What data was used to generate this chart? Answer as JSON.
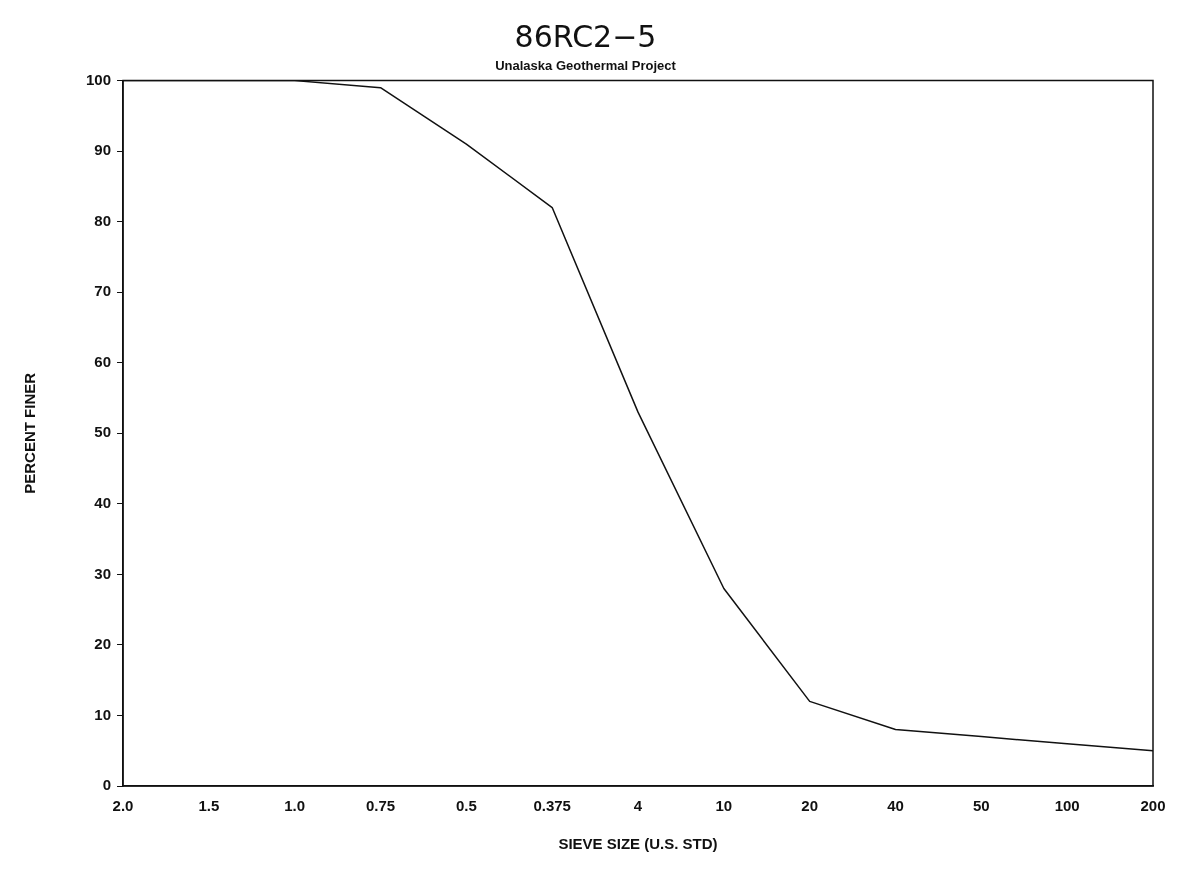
{
  "chart_data": {
    "type": "line",
    "title": "86RC2−5",
    "subtitle": "Unalaska Geothermal Project",
    "xlabel": "SIEVE SIZE (U.S. STD)",
    "ylabel": "PERCENT FINER",
    "categories": [
      "2.0",
      "1.5",
      "1.0",
      "0.75",
      "0.5",
      "0.375",
      "4",
      "10",
      "20",
      "40",
      "50",
      "100",
      "200"
    ],
    "series": [
      {
        "color": "#111111",
        "values": [
          100,
          100,
          100,
          99,
          91,
          82,
          53,
          28,
          12,
          8,
          7,
          6,
          5
        ]
      }
    ],
    "ylim": [
      0,
      100
    ],
    "yticks": [
      0,
      10,
      20,
      30,
      40,
      50,
      60,
      70,
      80,
      90,
      100
    ],
    "grid": false,
    "legend": false,
    "marker": "none",
    "line_style": "solid"
  }
}
